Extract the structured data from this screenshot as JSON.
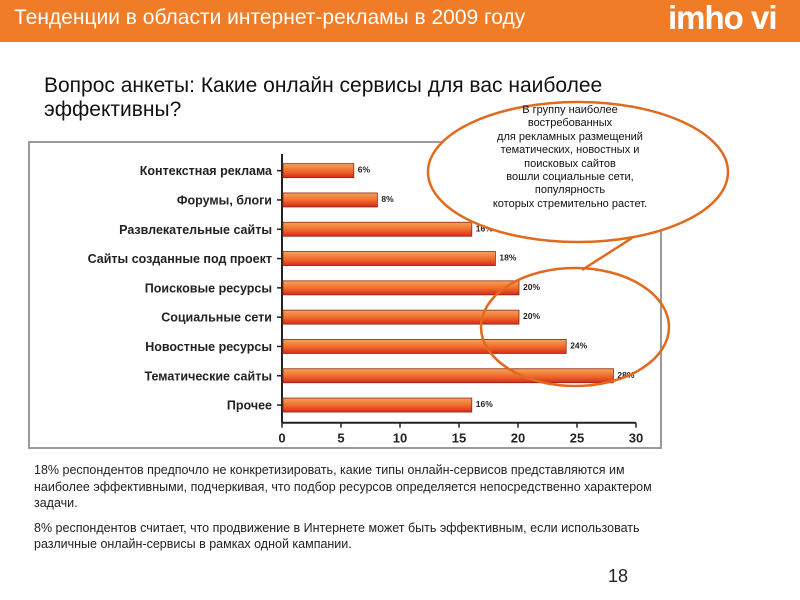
{
  "header": {
    "title": "Тенденции в области интернет-рекламы в 2009 году",
    "logo": "imho vi"
  },
  "question": "Вопрос анкеты: Какие онлайн сервисы для вас наиболее эффективны?",
  "callout": {
    "lines": [
      "В группу наиболее",
      "востребованных",
      "для рекламных размещений",
      "тематических, новостных и",
      "поисковых сайтов",
      "вошли социальные сети,",
      "популярность",
      "которых стремительно растет."
    ]
  },
  "chart_data": {
    "type": "bar",
    "orientation": "horizontal",
    "categories": [
      "Контекстная реклама",
      "Форумы, блоги",
      "Развлекательные сайты",
      "Сайты созданные под проект",
      "Поисковые ресурсы",
      "Социальные сети",
      "Новостные ресурсы",
      "Тематические сайты",
      "Прочее"
    ],
    "values": [
      6,
      8,
      16,
      18,
      20,
      20,
      24,
      28,
      16
    ],
    "value_labels": [
      "6%",
      "8%",
      "16%",
      "18%",
      "20%",
      "20%",
      "24%",
      "28%",
      "16%"
    ],
    "xlim": [
      0,
      30
    ],
    "xticks": [
      "0",
      "5",
      "10",
      "15",
      "20",
      "25",
      "30"
    ],
    "grid": false,
    "legend": "none",
    "colors": {
      "bar_light": "#F7A35A",
      "bar_dark": "#D9281E",
      "bar_border": "#8a2a10"
    }
  },
  "notes": [
    "18% респондентов предпочло не конкретизировать, какие типы онлайн-сервисов представляются им наиболее эффективными, подчеркивая, что подбор ресурсов определяется непосредственно характером задачи.",
    "8% респондентов считает, что продвижение в Интернете может быть эффективным, если использовать различные онлайн-сервисы в рамках одной кампании."
  ],
  "page_number": "18",
  "colors": {
    "accent": "#F07C28",
    "callout_stroke": "#E06A1E"
  }
}
